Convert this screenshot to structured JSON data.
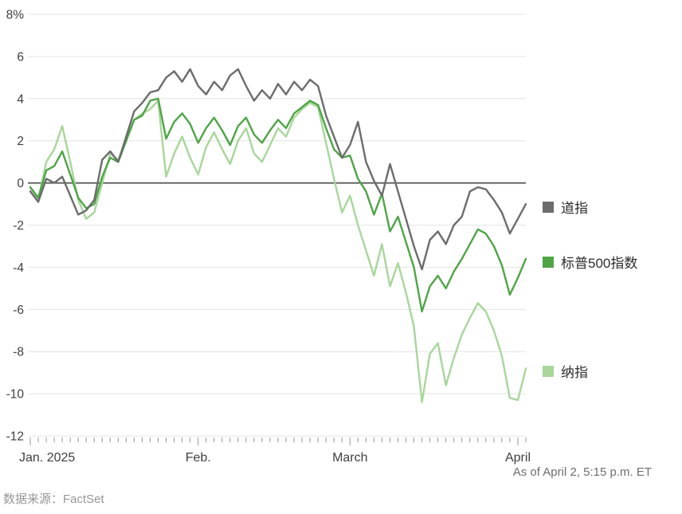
{
  "chart_data": {
    "type": "line",
    "description": "Year-to-date percent change of three U.S. stock indexes, Jan 2 to Apr 2, 2025",
    "ylim": [
      -12,
      8
    ],
    "grid": true,
    "legend_position": "right",
    "y_ticks": [
      {
        "value": 8,
        "label": "8%"
      },
      {
        "value": 6,
        "label": "6"
      },
      {
        "value": 4,
        "label": "4"
      },
      {
        "value": 2,
        "label": "2"
      },
      {
        "value": 0,
        "label": "0"
      },
      {
        "value": -2,
        "label": "-2"
      },
      {
        "value": -4,
        "label": "-4"
      },
      {
        "value": -6,
        "label": "-6"
      },
      {
        "value": -8,
        "label": "-8"
      },
      {
        "value": -10,
        "label": "-10"
      },
      {
        "value": -12,
        "label": "-12"
      }
    ],
    "x_ticks": [
      {
        "position": 0,
        "label": "Jan. 2025"
      },
      {
        "position": 21,
        "label": "Feb."
      },
      {
        "position": 40,
        "label": "March"
      },
      {
        "position": 61,
        "label": "April"
      }
    ],
    "colors": {
      "grid": "#e4e4e4",
      "zero_line": "#515151",
      "tick": "#999999",
      "axis_text": "#3f3f3f"
    },
    "series": [
      {
        "id": "dow",
        "name": "道指",
        "color": "#6b6c6b",
        "values": [
          -0.4,
          -0.9,
          0.2,
          0.0,
          0.3,
          -0.6,
          -1.5,
          -1.3,
          -0.8,
          1.1,
          1.5,
          1.0,
          2.2,
          3.4,
          3.8,
          4.3,
          4.4,
          5.0,
          5.3,
          4.8,
          5.4,
          4.6,
          4.2,
          4.8,
          4.4,
          5.1,
          5.4,
          4.6,
          3.9,
          4.4,
          4.0,
          4.7,
          4.2,
          4.8,
          4.4,
          4.9,
          4.6,
          3.2,
          2.2,
          1.2,
          1.8,
          2.9,
          1.0,
          0.1,
          -0.6,
          0.9,
          -0.4,
          -1.7,
          -3.0,
          -4.1,
          -2.7,
          -2.3,
          -2.9,
          -2.0,
          -1.6,
          -0.4,
          -0.2,
          -0.3,
          -0.8,
          -1.4,
          -2.4,
          -1.7,
          -1.0
        ]
      },
      {
        "id": "sp500",
        "name": "标普500指数",
        "color": "#4fa446",
        "values": [
          -0.2,
          -0.7,
          0.6,
          0.8,
          1.5,
          0.4,
          -0.7,
          -1.2,
          -1.0,
          0.3,
          1.2,
          1.0,
          2.0,
          3.0,
          3.2,
          3.9,
          4.0,
          2.1,
          2.9,
          3.3,
          2.8,
          1.9,
          2.6,
          3.1,
          2.5,
          1.8,
          2.7,
          3.1,
          2.3,
          1.9,
          2.5,
          3.0,
          2.6,
          3.3,
          3.6,
          3.9,
          3.7,
          2.6,
          1.6,
          1.2,
          1.3,
          0.2,
          -0.4,
          -1.5,
          -0.5,
          -2.3,
          -1.6,
          -2.8,
          -4.0,
          -6.1,
          -4.9,
          -4.4,
          -5.0,
          -4.2,
          -3.6,
          -2.9,
          -2.2,
          -2.4,
          -3.0,
          -3.9,
          -5.3,
          -4.5,
          -3.6
        ]
      },
      {
        "id": "nasdaq",
        "name": "纳指",
        "color": "#a8d69b",
        "values": [
          -0.2,
          -0.8,
          1.0,
          1.6,
          2.7,
          1.0,
          -0.8,
          -1.7,
          -1.4,
          0.0,
          1.4,
          1.1,
          2.1,
          3.0,
          3.3,
          3.5,
          3.9,
          0.3,
          1.4,
          2.2,
          1.2,
          0.4,
          1.7,
          2.4,
          1.6,
          0.9,
          2.0,
          2.6,
          1.4,
          1.0,
          1.8,
          2.6,
          2.2,
          3.1,
          3.5,
          3.8,
          3.6,
          1.9,
          0.2,
          -1.4,
          -0.6,
          -2.0,
          -3.2,
          -4.4,
          -2.9,
          -4.9,
          -3.8,
          -5.2,
          -6.8,
          -10.4,
          -8.1,
          -7.6,
          -9.6,
          -8.3,
          -7.2,
          -6.4,
          -5.7,
          -6.1,
          -7.0,
          -8.2,
          -10.2,
          -10.3,
          -8.8
        ]
      }
    ]
  },
  "legend": {
    "items": [
      {
        "label": "道指"
      },
      {
        "label": "标普500指数"
      },
      {
        "label": "纳指"
      }
    ]
  },
  "footer": {
    "as_of": "As of April 2, 5:15 p.m. ET",
    "source": "数据来源：FactSet"
  }
}
